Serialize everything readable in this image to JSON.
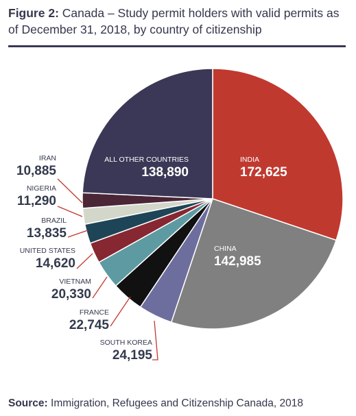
{
  "title": {
    "prefix": "Figure 2:",
    "text": "Canada – Study permit holders with valid permits as of December 31, 2018, by country of citizenship"
  },
  "source": {
    "prefix": "Source:",
    "text": "Immigration, Refugees and Citizenship Canada, 2018"
  },
  "chart_data": {
    "type": "pie",
    "slices": [
      {
        "label": "INDIA",
        "value": 172625,
        "value_text": "172,625",
        "color": "#c0392f"
      },
      {
        "label": "CHINA",
        "value": 142985,
        "value_text": "142,985",
        "color": "#808080"
      },
      {
        "label": "SOUTH KOREA",
        "value": 24195,
        "value_text": "24,195",
        "color": "#6e6e9e"
      },
      {
        "label": "FRANCE",
        "value": 22745,
        "value_text": "22,745",
        "color": "#111111"
      },
      {
        "label": "VIETNAM",
        "value": 20330,
        "value_text": "20,330",
        "color": "#5e9aa2"
      },
      {
        "label": "UNITED STATES",
        "value": 14620,
        "value_text": "14,620",
        "color": "#862732"
      },
      {
        "label": "BRAZIL",
        "value": 13835,
        "value_text": "13,835",
        "color": "#1e4557"
      },
      {
        "label": "NIGERIA",
        "value": 11290,
        "value_text": "11,290",
        "color": "#d2d7c9"
      },
      {
        "label": "IRAN",
        "value": 10885,
        "value_text": "10,885",
        "color": "#4a2636"
      },
      {
        "label": "ALL OTHER COUNTRIES",
        "value": 138890,
        "value_text": "138,890",
        "color": "#3a3856"
      }
    ],
    "leader_color": "#c0392f"
  }
}
